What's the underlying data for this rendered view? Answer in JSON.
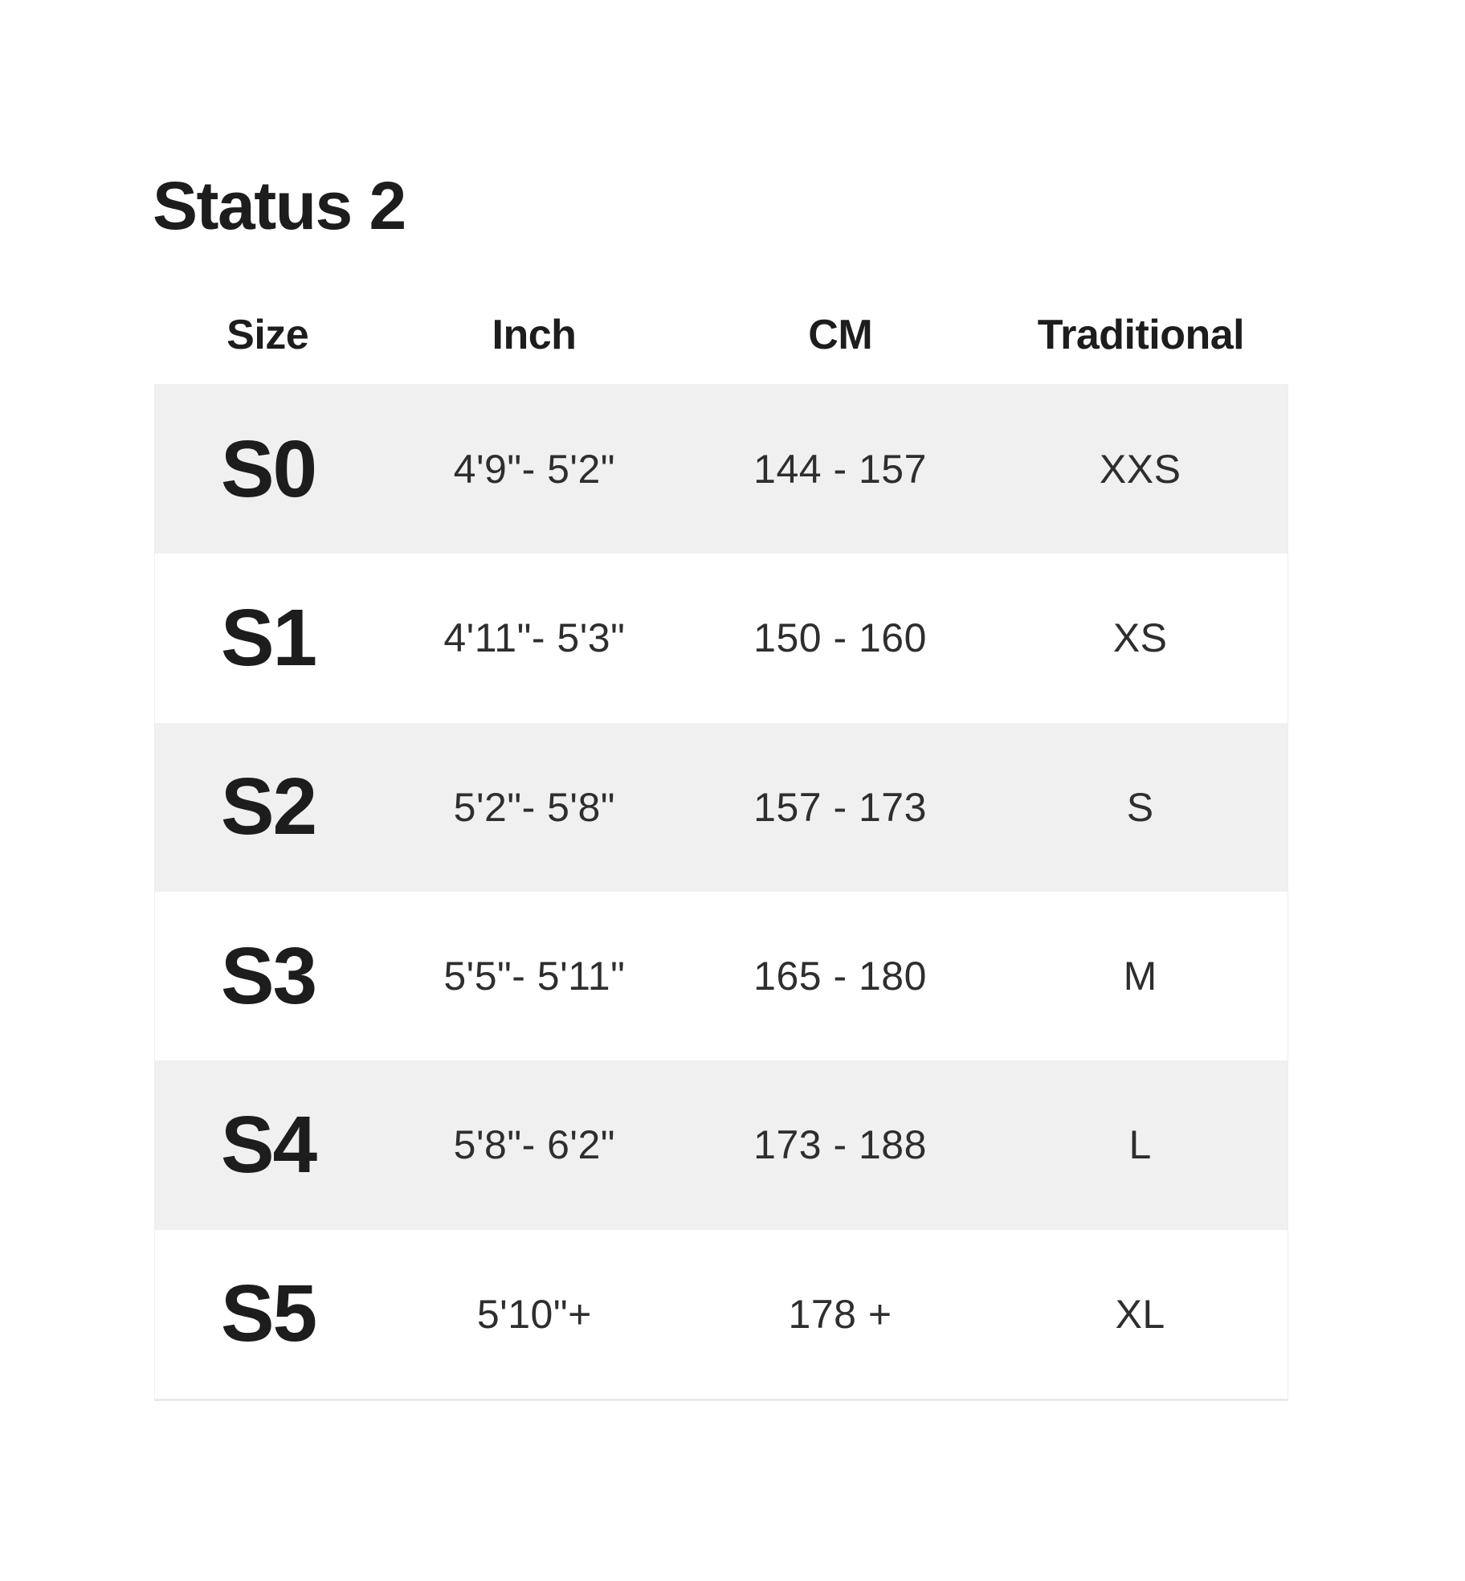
{
  "page": {
    "title": "Status 2"
  },
  "colors": {
    "background": "#ffffff",
    "row_stripe": "#f0f0f0",
    "row_plain": "#ffffff",
    "table_border": "#ececec",
    "heading_text": "#1d1d1d",
    "value_text": "#2e2e2e"
  },
  "chart_data": {
    "type": "table",
    "title": "Status 2",
    "columns": [
      "Size",
      "Inch",
      "CM",
      "Traditional"
    ],
    "rows": [
      [
        "S0",
        "4'9\"- 5'2\"",
        "144 - 157",
        "XXS"
      ],
      [
        "S1",
        "4'11\"- 5'3\"",
        "150 - 160",
        "XS"
      ],
      [
        "S2",
        "5'2\"- 5'8\"",
        "157 - 173",
        "S"
      ],
      [
        "S3",
        "5'5\"- 5'11\"",
        "165 - 180",
        "M"
      ],
      [
        "S4",
        "5'8\"- 6'2\"",
        "173 - 188",
        "L"
      ],
      [
        "S5",
        "5'10\"+",
        "178 +",
        "XL"
      ]
    ],
    "layout": {
      "striped_row_indices": [
        0,
        2,
        4
      ],
      "column_alignment": "center",
      "header_background": "none",
      "grid_lines": "none"
    }
  }
}
